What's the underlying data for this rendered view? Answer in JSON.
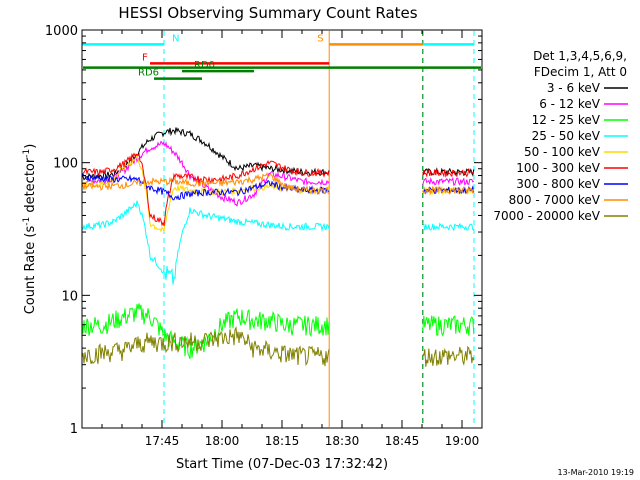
{
  "chart_data": {
    "type": "line",
    "title": "HESSI Observing Summary Count Rates",
    "xlabel": "Start Time (07-Dec-03 17:32:42)",
    "ylabel_main": "Count Rate (s",
    "ylabel_sup1": "-1",
    "ylabel_mid": " detector",
    "ylabel_sup2": "-1",
    "ylabel_end": ")",
    "yscale": "log",
    "ylim": [
      1,
      1000
    ],
    "xlim_minutes": [
      -5,
      95
    ],
    "x_ticks": [
      {
        "m": 15,
        "label": "17:45"
      },
      {
        "m": 30,
        "label": "18:00"
      },
      {
        "m": 45,
        "label": "18:15"
      },
      {
        "m": 60,
        "label": "18:30"
      },
      {
        "m": 75,
        "label": "18:45"
      },
      {
        "m": 90,
        "label": "19:00"
      }
    ],
    "y_ticks": [
      {
        "v": 1,
        "label": "1"
      },
      {
        "v": 10,
        "label": "10"
      },
      {
        "v": 100,
        "label": "100"
      },
      {
        "v": 1000,
        "label": "1000"
      }
    ],
    "legend_header": [
      "Det 1,3,4,5,6,9,",
      "FDecim 1, Att 0"
    ],
    "series": [
      {
        "name": "3 - 6 keV",
        "color": "#000000",
        "values": [
          78,
          80,
          82,
          95,
          120,
          150,
          170,
          175,
          165,
          140,
          110,
          90,
          95,
          90,
          88,
          85
        ]
      },
      {
        "name": "6 - 12 keV",
        "color": "#ff00ff",
        "values": [
          72,
          74,
          76,
          90,
          110,
          130,
          140,
          120,
          80,
          65,
          55,
          50,
          58,
          82,
          78,
          72
        ]
      },
      {
        "name": "12 - 25 keV",
        "color": "#00ff00",
        "values": [
          6,
          6,
          6.5,
          7,
          7.5,
          7,
          5,
          4.5,
          4,
          4.5,
          6,
          7,
          6.5,
          6.5,
          6,
          6
        ]
      },
      {
        "name": "25 - 50 keV",
        "color": "#00ffff",
        "values": [
          33,
          34,
          36,
          42,
          50,
          20,
          15,
          13,
          44,
          40,
          38,
          36,
          35,
          34,
          33,
          33
        ]
      },
      {
        "name": "50 - 100 keV",
        "color": "#ffd700",
        "values": [
          68,
          70,
          75,
          95,
          110,
          35,
          30,
          65,
          62,
          60,
          60,
          62,
          65,
          66,
          64,
          62
        ]
      },
      {
        "name": "100 - 300 keV",
        "color": "#ff0000",
        "values": [
          85,
          85,
          90,
          100,
          120,
          40,
          35,
          80,
          78,
          75,
          75,
          80,
          90,
          100,
          90,
          84
        ]
      },
      {
        "name": "300 - 800 keV",
        "color": "#0000ff",
        "values": [
          78,
          76,
          75,
          75,
          75,
          65,
          60,
          55,
          58,
          60,
          60,
          60,
          65,
          70,
          64,
          62
        ]
      },
      {
        "name": "800 - 7000 keV",
        "color": "#ff8c00",
        "values": [
          66,
          66,
          67,
          68,
          70,
          72,
          72,
          72,
          70,
          70,
          70,
          72,
          75,
          80,
          66,
          62
        ]
      },
      {
        "name": "7000 - 20000 keV",
        "color": "#808000",
        "values": [
          3.6,
          3.7,
          3.8,
          3.9,
          4.3,
          4.5,
          4.4,
          4.5,
          4.5,
          4.6,
          4.8,
          5,
          4,
          3.8,
          3.6,
          3.5
        ]
      }
    ],
    "segment_minutes": [
      [
        -5,
        0.3,
        3,
        6,
        9,
        12,
        15.5
      ],
      [
        15.5,
        18,
        22,
        26,
        30,
        34,
        38,
        42,
        46,
        50,
        54,
        56.8
      ],
      [
        80.2,
        82,
        85,
        88,
        91,
        93
      ]
    ],
    "attenuator_flags": [
      {
        "label": "N",
        "color": "#00ffff",
        "row": "top"
      },
      {
        "label": "S",
        "color": "#ff8c00",
        "row": "top"
      },
      {
        "label": "F",
        "color": "#ff0000",
        "row": "mid"
      },
      {
        "label": "RD0",
        "color": "#008000",
        "row": "low"
      },
      {
        "label": "RD6",
        "color": "#008000",
        "row": "lower"
      }
    ],
    "timestamp": "13-Mar-2010 19:19"
  }
}
